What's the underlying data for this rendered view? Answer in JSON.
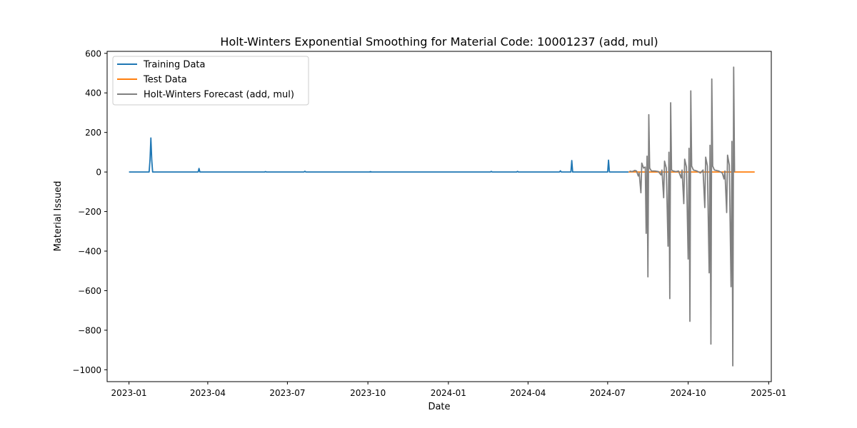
{
  "chart_data": {
    "type": "line",
    "title": "Holt-Winters Exponential Smoothing for Material Code: 10001237 (add, mul)",
    "xlabel": "Date",
    "ylabel": "Material Issued",
    "xlim": [
      "2022-12-07",
      "2025-01-04"
    ],
    "ylim": [
      -1060,
      610
    ],
    "x_ticks": [
      "2023-01",
      "2023-04",
      "2023-07",
      "2023-10",
      "2024-01",
      "2024-04",
      "2024-07",
      "2024-10",
      "2025-01"
    ],
    "x_tick_dates": [
      "2023-01-01",
      "2023-04-01",
      "2023-07-01",
      "2023-10-01",
      "2024-01-01",
      "2024-04-01",
      "2024-07-01",
      "2024-10-01",
      "2025-01-01"
    ],
    "y_ticks": [
      600,
      400,
      200,
      0,
      -200,
      -400,
      -600,
      -800,
      -1000
    ],
    "y_tick_labels": [
      "600",
      "400",
      "200",
      "0",
      "−200",
      "−400",
      "−600",
      "−800",
      "−1000"
    ],
    "grid": false,
    "legend_position": "top-left",
    "series": [
      {
        "name": "Training Data",
        "color": "#1f77b4",
        "points": [
          [
            "2023-01-01",
            0
          ],
          [
            "2023-01-24",
            0
          ],
          [
            "2023-01-25",
            60
          ],
          [
            "2023-01-26",
            172
          ],
          [
            "2023-01-27",
            60
          ],
          [
            "2023-01-28",
            0
          ],
          [
            "2023-03-21",
            0
          ],
          [
            "2023-03-22",
            18
          ],
          [
            "2023-03-23",
            0
          ],
          [
            "2023-06-05",
            0
          ],
          [
            "2023-06-06",
            2
          ],
          [
            "2023-06-07",
            0
          ],
          [
            "2023-07-20",
            0
          ],
          [
            "2023-07-21",
            4
          ],
          [
            "2023-07-22",
            0
          ],
          [
            "2023-10-03",
            0
          ],
          [
            "2023-10-04",
            2
          ],
          [
            "2023-10-05",
            0
          ],
          [
            "2024-02-18",
            0
          ],
          [
            "2024-02-19",
            3
          ],
          [
            "2024-02-20",
            0
          ],
          [
            "2024-03-19",
            0
          ],
          [
            "2024-03-20",
            3
          ],
          [
            "2024-03-21",
            0
          ],
          [
            "2024-05-07",
            0
          ],
          [
            "2024-05-08",
            6
          ],
          [
            "2024-05-09",
            0
          ],
          [
            "2024-05-20",
            0
          ],
          [
            "2024-05-21",
            58
          ],
          [
            "2024-05-22",
            0
          ],
          [
            "2024-07-01",
            0
          ],
          [
            "2024-07-02",
            60
          ],
          [
            "2024-07-03",
            0
          ],
          [
            "2024-07-25",
            0
          ]
        ]
      },
      {
        "name": "Test Data",
        "color": "#ff7f0e",
        "points": [
          [
            "2024-07-25",
            0
          ],
          [
            "2024-07-30",
            1
          ],
          [
            "2024-08-05",
            0
          ],
          [
            "2024-08-20",
            0
          ],
          [
            "2024-09-15",
            0
          ],
          [
            "2024-10-15",
            0
          ],
          [
            "2024-11-10",
            0
          ],
          [
            "2024-12-01",
            0
          ],
          [
            "2024-12-16",
            0
          ]
        ]
      },
      {
        "name": "Holt-Winters Forecast (add, mul)",
        "color": "#808080",
        "points": [
          [
            "2024-07-26",
            5
          ],
          [
            "2024-07-29",
            2
          ],
          [
            "2024-08-01",
            8
          ],
          [
            "2024-08-03",
            5
          ],
          [
            "2024-08-05",
            -20
          ],
          [
            "2024-08-06",
            -5
          ],
          [
            "2024-08-08",
            -105
          ],
          [
            "2024-08-09",
            45
          ],
          [
            "2024-08-11",
            20
          ],
          [
            "2024-08-13",
            25
          ],
          [
            "2024-08-14",
            -310
          ],
          [
            "2024-08-15",
            80
          ],
          [
            "2024-08-16",
            -530
          ],
          [
            "2024-08-17",
            290
          ],
          [
            "2024-08-18",
            20
          ],
          [
            "2024-08-20",
            5
          ],
          [
            "2024-08-24",
            5
          ],
          [
            "2024-08-28",
            2
          ],
          [
            "2024-08-31",
            -15
          ],
          [
            "2024-09-01",
            10
          ],
          [
            "2024-09-03",
            -130
          ],
          [
            "2024-09-04",
            55
          ],
          [
            "2024-09-06",
            20
          ],
          [
            "2024-09-08",
            -375
          ],
          [
            "2024-09-09",
            100
          ],
          [
            "2024-09-10",
            -640
          ],
          [
            "2024-09-11",
            350
          ],
          [
            "2024-09-12",
            10
          ],
          [
            "2024-09-14",
            5
          ],
          [
            "2024-09-17",
            2
          ],
          [
            "2024-09-20",
            5
          ],
          [
            "2024-09-23",
            -30
          ],
          [
            "2024-09-24",
            10
          ],
          [
            "2024-09-26",
            -160
          ],
          [
            "2024-09-27",
            65
          ],
          [
            "2024-09-29",
            25
          ],
          [
            "2024-10-01",
            -440
          ],
          [
            "2024-10-02",
            120
          ],
          [
            "2024-10-03",
            -755
          ],
          [
            "2024-10-04",
            410
          ],
          [
            "2024-10-05",
            30
          ],
          [
            "2024-10-07",
            10
          ],
          [
            "2024-10-11",
            5
          ],
          [
            "2024-10-15",
            -5
          ],
          [
            "2024-10-18",
            10
          ],
          [
            "2024-10-20",
            -180
          ],
          [
            "2024-10-21",
            75
          ],
          [
            "2024-10-23",
            30
          ],
          [
            "2024-10-25",
            -510
          ],
          [
            "2024-10-26",
            135
          ],
          [
            "2024-10-27",
            -870
          ],
          [
            "2024-10-28",
            470
          ],
          [
            "2024-10-29",
            30
          ],
          [
            "2024-10-31",
            10
          ],
          [
            "2024-11-05",
            5
          ],
          [
            "2024-11-09",
            -5
          ],
          [
            "2024-11-11",
            -35
          ],
          [
            "2024-11-12",
            5
          ],
          [
            "2024-11-14",
            -205
          ],
          [
            "2024-11-15",
            85
          ],
          [
            "2024-11-17",
            35
          ],
          [
            "2024-11-19",
            -580
          ],
          [
            "2024-11-20",
            155
          ],
          [
            "2024-11-21",
            -980
          ],
          [
            "2024-11-22",
            530
          ],
          [
            "2024-11-23",
            0
          ]
        ]
      }
    ]
  }
}
